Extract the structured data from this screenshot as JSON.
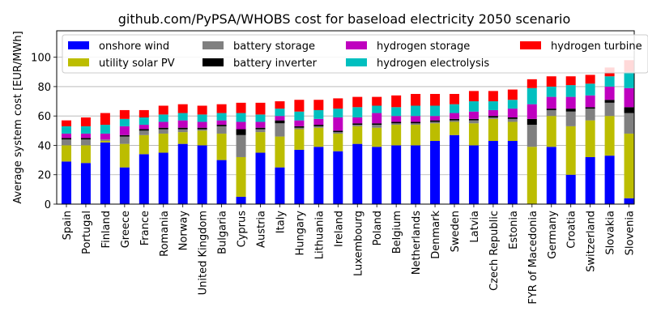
{
  "chart_data": {
    "type": "bar",
    "stacked": true,
    "title": "github.com/PyPSA/WHOBS cost for baseload electricity 2050 scenario",
    "xlabel": "",
    "ylabel": "Average system cost [EUR/MWh]",
    "ylim": [
      0,
      118
    ],
    "yticks": [
      0,
      20,
      40,
      60,
      80,
      100
    ],
    "grid": "y",
    "legend_position": "top",
    "categories": [
      "Spain",
      "Portugal",
      "Finland",
      "Greece",
      "France",
      "Romania",
      "Norway",
      "United Kingdom",
      "Bulgaria",
      "Cyprus",
      "Austria",
      "Italy",
      "Hungary",
      "Lithuania",
      "Ireland",
      "Luxembourg",
      "Poland",
      "Belgium",
      "Netherlands",
      "Denmark",
      "Sweden",
      "Latvia",
      "Czech Republic",
      "Estonia",
      "FYR of Macedonia",
      "Germany",
      "Croatia",
      "Switzerland",
      "Slovakia",
      "Slovenia"
    ],
    "series": [
      {
        "name": "onshore wind",
        "color": "#0000ff",
        "values": [
          29,
          28,
          42,
          25,
          34,
          35,
          41,
          40,
          30,
          5,
          35,
          25,
          37,
          39,
          36,
          41,
          39,
          40,
          40,
          43,
          47,
          40,
          43,
          43,
          0,
          39,
          20,
          32,
          33,
          4
        ]
      },
      {
        "name": "utility solar PV",
        "color": "#bcbd00",
        "values": [
          11,
          12,
          1,
          16,
          13,
          13,
          8,
          10,
          18,
          27,
          14,
          21,
          14,
          13,
          12,
          12,
          13,
          14,
          14,
          12,
          9,
          15,
          15,
          13,
          39,
          21,
          33,
          25,
          27,
          44
        ]
      },
      {
        "name": "battery storage",
        "color": "#808080",
        "values": [
          4,
          4,
          1,
          5,
          3,
          3,
          2,
          1,
          5,
          15,
          2,
          9,
          1,
          1,
          1,
          1,
          2,
          1,
          1,
          1,
          1,
          2,
          1,
          2,
          15,
          4,
          10,
          8,
          9,
          14
        ]
      },
      {
        "name": "battery inverter",
        "color": "#000000",
        "values": [
          1,
          1,
          0,
          1,
          1,
          1,
          1,
          1,
          1,
          4,
          1,
          2,
          1,
          1,
          1,
          1,
          1,
          1,
          1,
          1,
          1,
          1,
          1,
          1,
          4,
          1,
          2,
          1,
          2,
          4
        ]
      },
      {
        "name": "hydrogen storage",
        "color": "#bf00bf",
        "values": [
          3,
          3,
          4,
          6,
          3,
          4,
          5,
          4,
          3,
          5,
          4,
          3,
          4,
          4,
          9,
          4,
          7,
          4,
          4,
          3,
          4,
          5,
          4,
          6,
          10,
          8,
          8,
          8,
          9,
          13
        ]
      },
      {
        "name": "hydrogen electrolysis",
        "color": "#00bfbf",
        "values": [
          5,
          5,
          6,
          5,
          5,
          5,
          5,
          5,
          5,
          6,
          5,
          5,
          6,
          6,
          6,
          7,
          5,
          6,
          7,
          7,
          6,
          7,
          6,
          6,
          11,
          7,
          8,
          8,
          7,
          11
        ]
      },
      {
        "name": "hydrogen turbine",
        "color": "#ff0000",
        "values": [
          4,
          6,
          8,
          6,
          5,
          6,
          6,
          6,
          6,
          7,
          8,
          5,
          8,
          7,
          7,
          7,
          6,
          8,
          8,
          8,
          7,
          7,
          7,
          7,
          6,
          7,
          6,
          6,
          6,
          8
        ]
      }
    ]
  }
}
